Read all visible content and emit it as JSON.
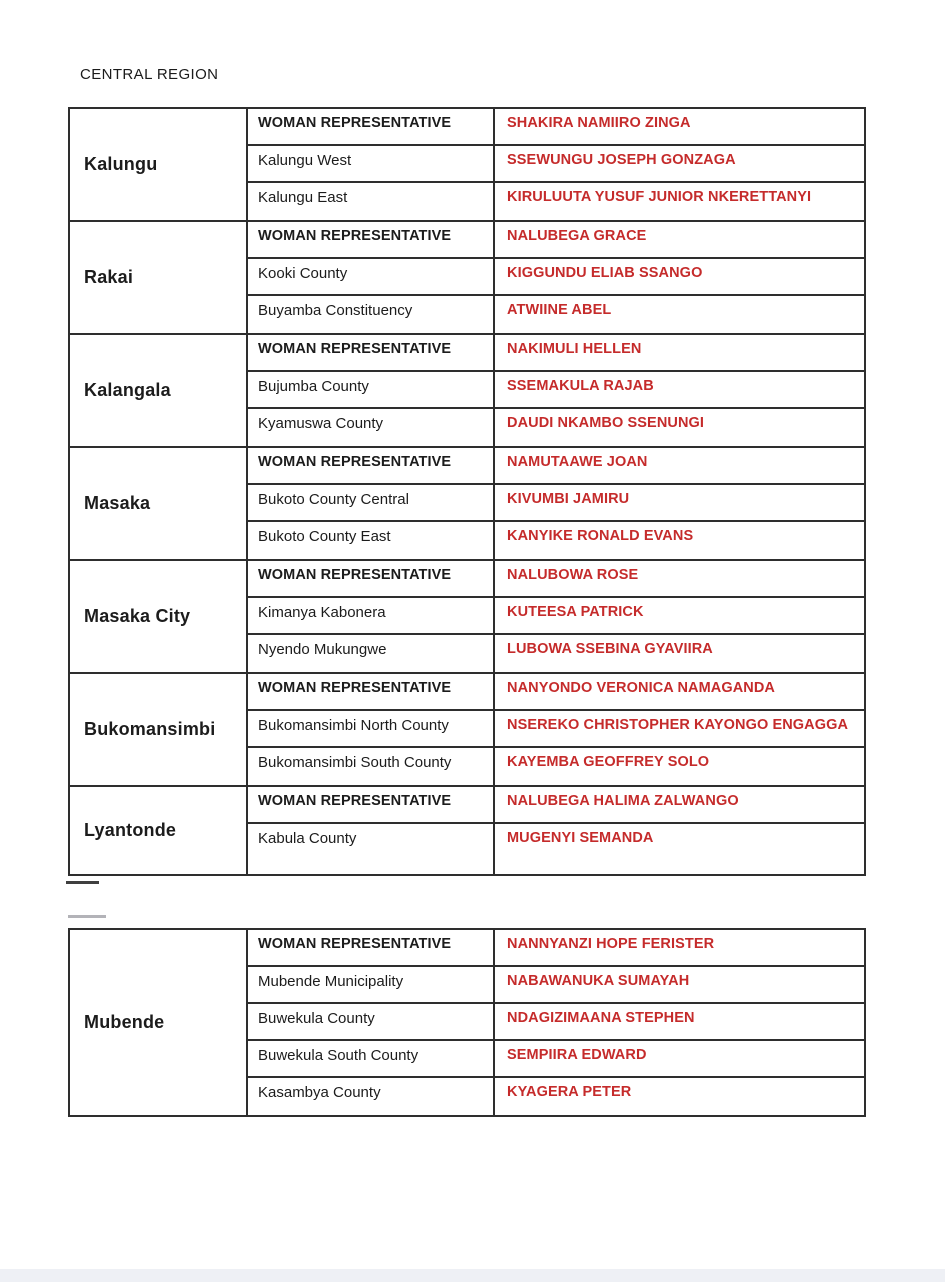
{
  "page": {
    "title": "CENTRAL REGION"
  },
  "colors": {
    "name_red": "#c52b2b",
    "border_dark": "#2e2e2e",
    "text_black": "#1c1c1c",
    "footer_bar": "#eef0f5"
  },
  "tables": [
    {
      "districts": [
        {
          "name": "Kalungu",
          "rows": [
            {
              "label": "WOMAN REPRESENTATIVE",
              "value": "SHAKIRA NAMIIRO ZINGA"
            },
            {
              "label": "Kalungu West",
              "value": "SSEWUNGU JOSEPH GONZAGA"
            },
            {
              "label": "Kalungu East",
              "value": "KIRULUUTA YUSUF JUNIOR NKERETTANYI"
            }
          ]
        },
        {
          "name": "Rakai",
          "rows": [
            {
              "label": "WOMAN REPRESENTATIVE",
              "value": "NALUBEGA GRACE"
            },
            {
              "label": "Kooki County",
              "value": "KIGGUNDU ELIAB SSANGO"
            },
            {
              "label": "Buyamba Constituency",
              "value": "ATWIINE ABEL"
            }
          ]
        },
        {
          "name": "Kalangala",
          "rows": [
            {
              "label": "WOMAN REPRESENTATIVE",
              "value": "NAKIMULI HELLEN"
            },
            {
              "label": "Bujumba County",
              "value": "SSEMAKULA RAJAB"
            },
            {
              "label": "Kyamuswa County",
              "value": "DAUDI NKAMBO SSENUNGI"
            }
          ]
        },
        {
          "name": "Masaka",
          "rows": [
            {
              "label": "WOMAN REPRESENTATIVE",
              "value": "NAMUTAAWE JOAN"
            },
            {
              "label": "Bukoto County Central",
              "value": "KIVUMBI JAMIRU"
            },
            {
              "label": "Bukoto County East",
              "value": "KANYIKE RONALD EVANS"
            }
          ]
        },
        {
          "name": "Masaka City",
          "rows": [
            {
              "label": "WOMAN REPRESENTATIVE",
              "value": "NALUBOWA ROSE"
            },
            {
              "label": "Kimanya Kabonera",
              "value": "KUTEESA PATRICK"
            },
            {
              "label": "Nyendo Mukungwe",
              "value": "LUBOWA SSEBINA GYAVIIRA"
            }
          ]
        },
        {
          "name": "Bukomansimbi",
          "rows": [
            {
              "label": "WOMAN REPRESENTATIVE",
              "value": "NANYONDO VERONICA NAMAGANDA"
            },
            {
              "label": "Bukomansimbi North County",
              "value": "NSEREKO CHRISTOPHER KAYONGO ENGAGGA"
            },
            {
              "label": "Bukomansimbi South County",
              "value": "KAYEMBA GEOFFREY SOLO"
            }
          ]
        },
        {
          "name": "Lyantonde",
          "rows": [
            {
              "label": "WOMAN REPRESENTATIVE",
              "value": "NALUBEGA HALIMA ZALWANGO"
            },
            {
              "label": "Kabula County",
              "value": "MUGENYI SEMANDA"
            }
          ]
        }
      ]
    },
    {
      "districts": [
        {
          "name": "Mubende",
          "rows": [
            {
              "label": "WOMAN REPRESENTATIVE",
              "value": "NANNYANZI HOPE FERISTER"
            },
            {
              "label": "Mubende Municipality",
              "value": "NABAWANUKA SUMAYAH"
            },
            {
              "label": "Buwekula County",
              "value": "NDAGIZIMAANA STEPHEN"
            },
            {
              "label": "Buwekula South County",
              "value": "SEMPIIRA EDWARD"
            },
            {
              "label": "Kasambya County",
              "value": "KYAGERA PETER"
            }
          ]
        }
      ]
    }
  ]
}
